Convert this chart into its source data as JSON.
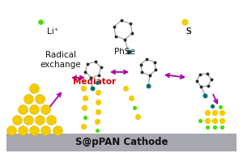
{
  "bg_color": "#ffffff",
  "cathode_color": "#a8a8b0",
  "cathode_label": "S@pPAN Cathode",
  "cathode_fontsize": 8.5,
  "arrow_color": "#aa00aa",
  "yellow_color": "#f5cc00",
  "green_color": "#44dd00",
  "dark_color": "#2a2a2a",
  "teal_color": "#007070",
  "gray_color": "#888888",
  "li_label": "Li⁺",
  "phse_label": "PhSe",
  "s_label": "S",
  "radical_text": "Radical\nexchange",
  "mediator_text": "Mediator",
  "mediator_color": "#cc0000"
}
